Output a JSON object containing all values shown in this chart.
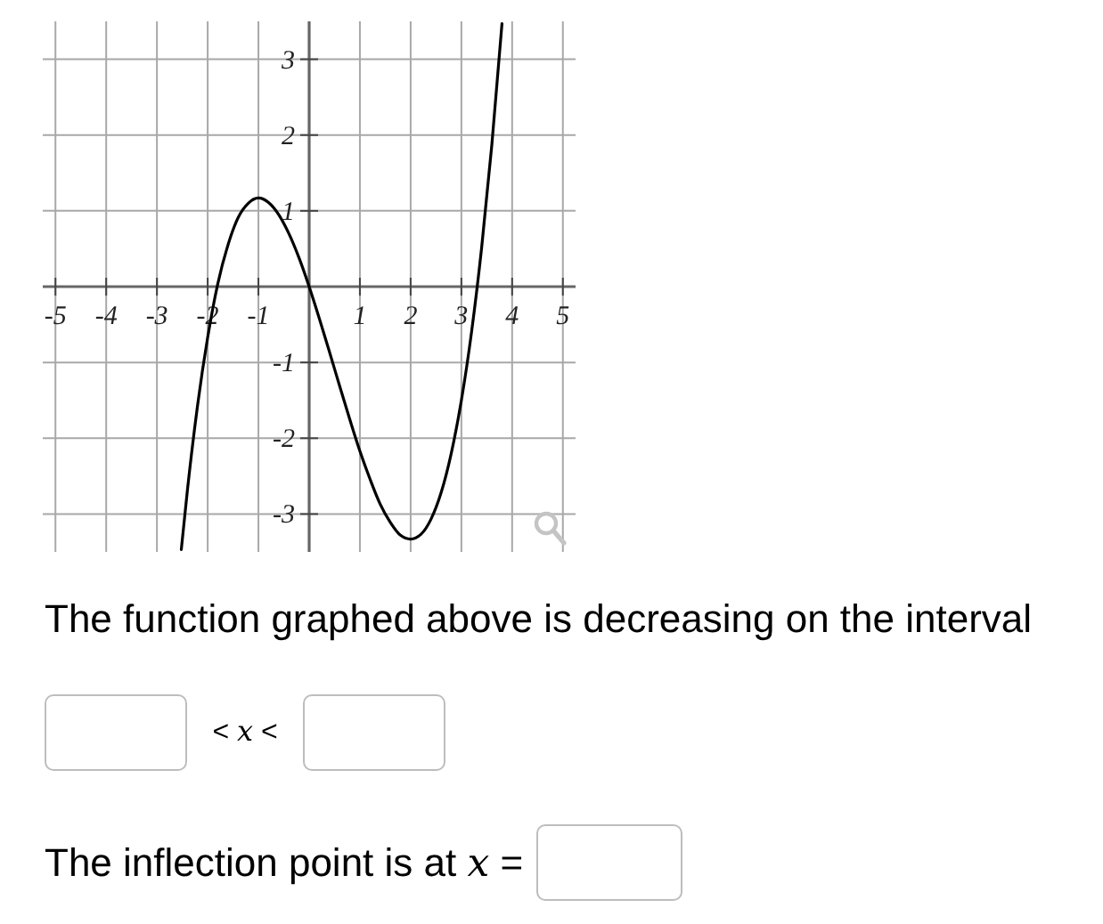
{
  "chart_data": {
    "type": "line",
    "x": [
      -2.52,
      -2.4,
      -2.2,
      -2.0,
      -1.8,
      -1.6,
      -1.4,
      -1.2,
      -1.0,
      -0.8,
      -0.6,
      -0.4,
      -0.2,
      0,
      0.2,
      0.4,
      0.6,
      0.8,
      1.0,
      1.2,
      1.4,
      1.6,
      1.8,
      2.0,
      2.2,
      2.4,
      2.6,
      2.8,
      3.0,
      3.2,
      3.4,
      3.6,
      3.8
    ],
    "values": [
      -3.47,
      -2.69,
      -1.57,
      -0.67,
      0.04,
      0.55,
      0.91,
      1.1,
      1.17,
      1.11,
      0.95,
      0.7,
      0.38,
      0,
      -0.42,
      -0.86,
      -1.31,
      -1.75,
      -2.17,
      -2.54,
      -2.87,
      -3.11,
      -3.28,
      -3.33,
      -3.27,
      -3.07,
      -2.72,
      -2.2,
      -1.5,
      -0.6,
      0.52,
      1.87,
      3.47
    ],
    "color": "#000000",
    "xlim": [
      -5.25,
      5.25
    ],
    "ylim": [
      -3.5,
      3.5
    ],
    "xticks": [
      -5,
      -4,
      -3,
      -2,
      -1,
      1,
      2,
      3,
      4,
      5
    ],
    "yticks": [
      -3,
      -2,
      -1,
      1,
      2,
      3
    ],
    "grid": true,
    "annotations": [
      "The function graphed above is decreasing on the interval",
      "< 𝑥 <",
      "The inflection point is at 𝑥 ="
    ]
  }
}
